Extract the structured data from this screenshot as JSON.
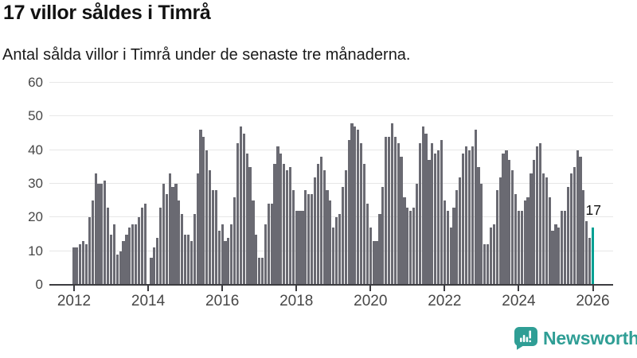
{
  "header": {
    "title": "17 villor såldes i Timrå",
    "subtitle": "Antal sålda villor i Timrå under de senaste tre månaderna."
  },
  "chart_data": {
    "type": "bar",
    "title": "17 villor såldes i Timrå",
    "xlabel": "",
    "ylabel": "",
    "x_start_month": "2012-01",
    "x_end_month": "2026-01",
    "x_tick_labels": [
      "2012",
      "2014",
      "2016",
      "2018",
      "2020",
      "2022",
      "2024",
      "2026"
    ],
    "y_ticks": [
      0,
      10,
      20,
      30,
      40,
      50,
      60
    ],
    "ylim": [
      0,
      60
    ],
    "grid": true,
    "values": [
      11,
      11,
      12,
      13,
      12,
      20,
      25,
      33,
      30,
      30,
      31,
      23,
      15,
      18,
      9,
      10,
      13,
      15,
      17,
      18,
      18,
      20,
      23,
      24,
      0,
      8,
      11,
      14,
      23,
      30,
      27,
      33,
      29,
      30,
      25,
      21,
      15,
      15,
      13,
      21,
      33,
      46,
      44,
      40,
      34,
      28,
      28,
      16,
      18,
      13,
      14,
      18,
      26,
      42,
      47,
      45,
      39,
      35,
      25,
      15,
      8,
      8,
      18,
      24,
      24,
      36,
      41,
      39,
      36,
      34,
      35,
      28,
      22,
      22,
      22,
      28,
      27,
      27,
      32,
      36,
      38,
      34,
      28,
      25,
      17,
      20,
      21,
      29,
      34,
      43,
      48,
      47,
      46,
      42,
      36,
      24,
      17,
      13,
      13,
      21,
      29,
      44,
      44,
      48,
      44,
      42,
      38,
      26,
      23,
      22,
      23,
      30,
      42,
      47,
      45,
      37,
      42,
      39,
      40,
      43,
      25,
      22,
      17,
      23,
      28,
      32,
      39,
      41,
      40,
      41,
      46,
      35,
      30,
      12,
      12,
      17,
      18,
      28,
      32,
      39,
      40,
      37,
      34,
      27,
      22,
      22,
      25,
      26,
      33,
      37,
      41,
      42,
      33,
      32,
      26,
      16,
      18,
      17,
      22,
      22,
      29,
      33,
      35,
      40,
      38,
      28,
      19,
      14,
      17
    ],
    "highlight_last_bar": true,
    "highlight_value_label": "17",
    "bar_color": "#6a6a72",
    "highlight_color": "#00a093",
    "grid_color": "#e7e7e7",
    "axis_color": "#3c3c40"
  },
  "footer": {
    "brand": "Newsworthy",
    "logo_icon": "newsworthy-speech-bubble-bar-chart-icon",
    "brand_color": "#2f9e95"
  }
}
